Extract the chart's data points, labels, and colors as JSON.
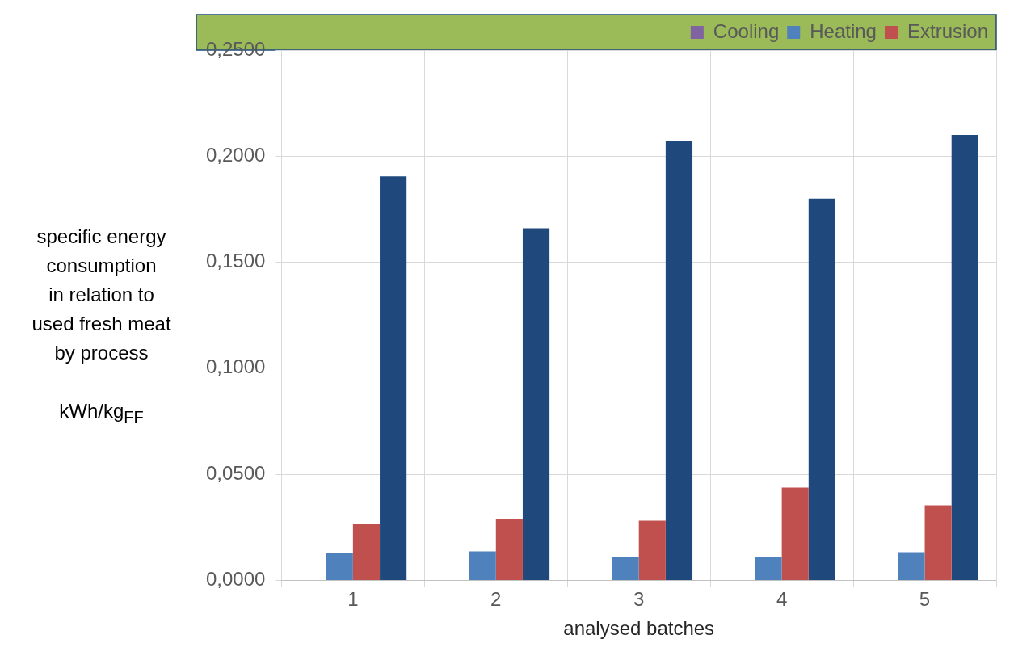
{
  "chart_data": {
    "type": "bar",
    "ylabel": "specific energy consumption\nin relation to\nused fresh meat\nby process\n\nkWh/kg$_{FF}$",
    "xlabel": "analysed batches",
    "categories": [
      "1",
      "2",
      "3",
      "4",
      "5"
    ],
    "series": [
      {
        "name": "Cooling",
        "color": "#8064a2",
        "values": [
          0,
          0,
          0,
          0,
          0
        ]
      },
      {
        "name": "Heating",
        "color": "#4f81bd",
        "values": [
          0.0129,
          0.0137,
          0.0109,
          0.0109,
          0.0133
        ]
      },
      {
        "name": "Extrusion",
        "color": "#c0504d",
        "values": [
          0.0265,
          0.0289,
          0.0281,
          0.0438,
          0.0354
        ]
      },
      {
        "color": "#1f497d",
        "values": [
          0.1905,
          0.166,
          0.207,
          0.18,
          0.21
        ]
      }
    ],
    "ylim": [
      0,
      0.25
    ],
    "yticks": [
      {
        "value": 0,
        "label": "0,0000"
      },
      {
        "value": 0.05,
        "label": "0,0500"
      },
      {
        "value": 0.1,
        "label": "0,1000"
      },
      {
        "value": 0.15,
        "label": "0,1500"
      },
      {
        "value": 0.2,
        "label": "0,2000"
      },
      {
        "value": 0.25,
        "label": "0,2500"
      }
    ],
    "grid": true,
    "legend": "top right"
  }
}
